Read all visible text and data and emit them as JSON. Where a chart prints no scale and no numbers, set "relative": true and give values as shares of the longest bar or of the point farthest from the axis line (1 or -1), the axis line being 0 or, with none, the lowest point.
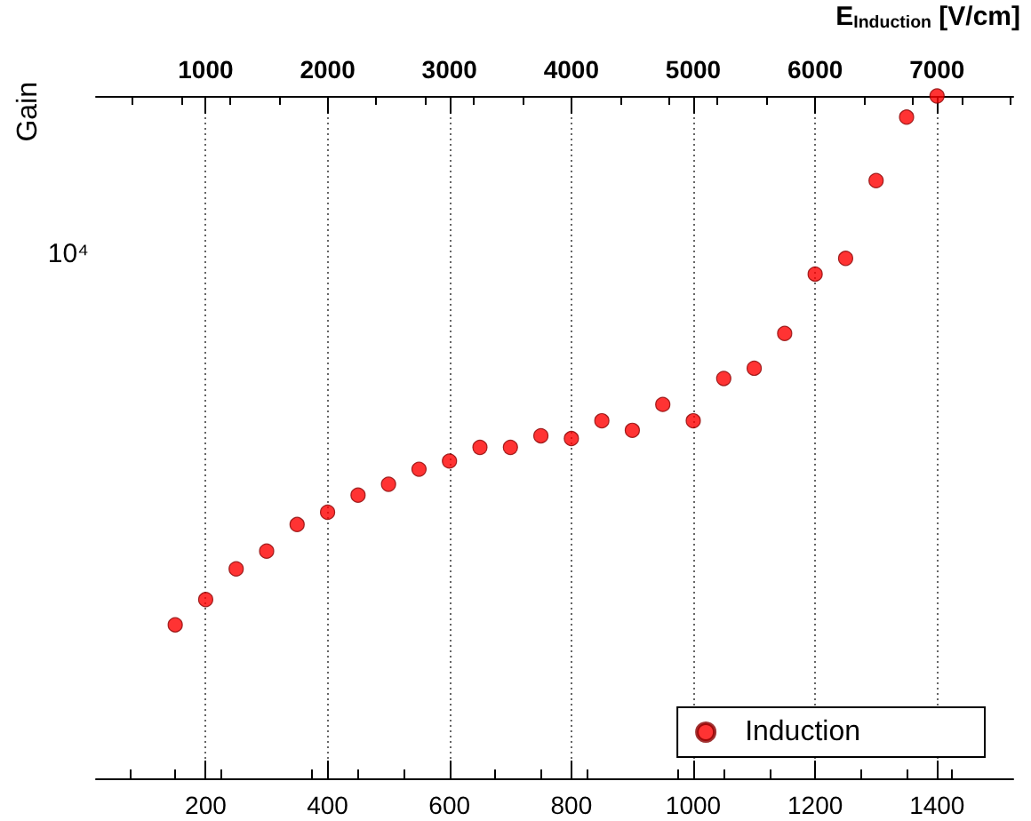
{
  "chart_data": {
    "type": "scatter",
    "ylabel": "Gain",
    "x2label": "E$_{Induction}$ [V/cm]",
    "relative": true,
    "x": [
      150,
      200,
      250,
      300,
      350,
      400,
      450,
      500,
      550,
      600,
      650,
      700,
      750,
      800,
      850,
      900,
      950,
      1000,
      1050,
      1100,
      1150,
      1200,
      1250,
      1300,
      1350,
      1400
    ],
    "series": [
      {
        "name": "Induction",
        "color": "#ff0000",
        "values": [
          0.225,
          0.262,
          0.307,
          0.333,
          0.372,
          0.39,
          0.415,
          0.431,
          0.453,
          0.465,
          0.485,
          0.485,
          0.502,
          0.498,
          0.524,
          0.51,
          0.548,
          0.524,
          0.586,
          0.601,
          0.652,
          0.739,
          0.762,
          0.876,
          0.969,
          1
        ]
      }
    ],
    "annotations": [
      "10⁴"
    ],
    "xlim": [
      20,
      1525
    ],
    "xticks": [
      200,
      400,
      600,
      800,
      1000,
      1200,
      1400
    ],
    "x2lim": [
      100,
      7625
    ],
    "x2ticks": [
      1000,
      2000,
      3000,
      4000,
      5000,
      6000,
      7000
    ],
    "grid": "x",
    "legend": "bottom right",
    "marker": "circle"
  }
}
